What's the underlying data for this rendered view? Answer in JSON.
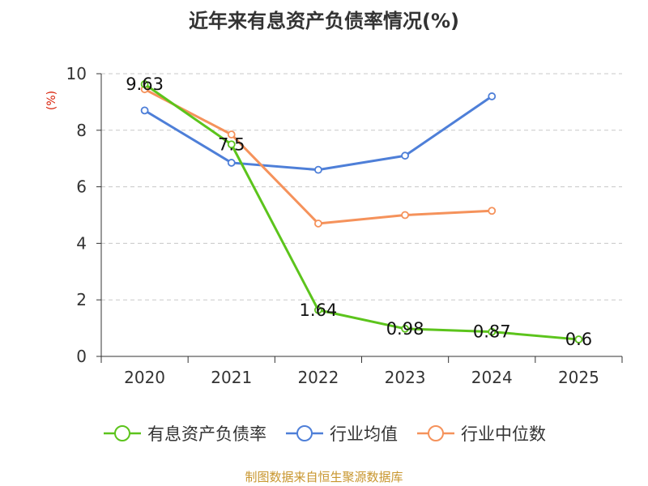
{
  "title": "近年来有息资产负债率情况(%)",
  "source": "制图数据来自恒生聚源数据库",
  "chart_data": {
    "type": "line",
    "title": "近年来有息资产负债率情况(%)",
    "ylabel": "(%)",
    "xlabel": "",
    "categories": [
      "2020",
      "2021",
      "2022",
      "2023",
      "2024",
      "2025"
    ],
    "ylim": [
      0,
      10
    ],
    "yticks": [
      "0",
      "2",
      "4",
      "6",
      "8",
      "10"
    ],
    "grid": true,
    "legend_position": "bottom",
    "series": [
      {
        "name": "有息资产负债率",
        "color": "#5cc41c",
        "values": [
          9.63,
          7.5,
          1.64,
          0.98,
          0.87,
          0.6
        ],
        "labels": [
          "9.63",
          "7.5",
          "1.64",
          "0.98",
          "0.87",
          "0.6"
        ]
      },
      {
        "name": "行业均值",
        "color": "#4e7fd8",
        "values": [
          8.7,
          6.85,
          6.6,
          7.1,
          9.2,
          null
        ]
      },
      {
        "name": "行业中位数",
        "color": "#f5925b",
        "values": [
          9.45,
          7.85,
          4.7,
          5.0,
          5.15,
          null
        ]
      }
    ]
  }
}
